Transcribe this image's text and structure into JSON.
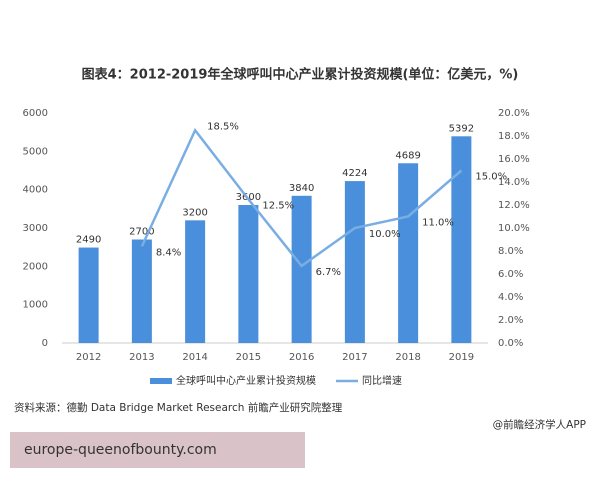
{
  "chart_data": {
    "type": "bar",
    "title": "图表4：2012-2019年全球呼叫中心产业累计投资规模(单位：亿美元，%)",
    "categories": [
      "2012",
      "2013",
      "2014",
      "2015",
      "2016",
      "2017",
      "2018",
      "2019"
    ],
    "series": [
      {
        "name": "全球呼叫中心产业累计投资规模",
        "type": "bar",
        "color": "#4a8fdc",
        "values": [
          2490,
          2700,
          3200,
          3600,
          3840,
          4224,
          4689,
          5392
        ]
      },
      {
        "name": "同比增速",
        "type": "line",
        "axis": "y2",
        "color": "#7aaee3",
        "values": [
          null,
          8.4,
          18.5,
          12.5,
          6.7,
          10.0,
          11.0,
          15.0
        ],
        "value_labels": [
          null,
          "8.4%",
          "18.5%",
          "12.5%",
          "6.7%",
          "10.0%",
          "11.0%",
          "15.0%"
        ]
      }
    ],
    "ylim": [
      0,
      6000
    ],
    "yticks": [
      0,
      1000,
      2000,
      3000,
      4000,
      5000,
      6000
    ],
    "y2lim": [
      0,
      20
    ],
    "y2ticks": [
      {
        "value": 0,
        "label": "0.0%"
      },
      {
        "value": 2,
        "label": "2.0%"
      },
      {
        "value": 4,
        "label": "4.0%"
      },
      {
        "value": 6,
        "label": "6.0%"
      },
      {
        "value": 8,
        "label": "8.0%"
      },
      {
        "value": 10,
        "label": "10.0%"
      },
      {
        "value": 12,
        "label": "12.0%"
      },
      {
        "value": 14,
        "label": "14.0%"
      },
      {
        "value": 16,
        "label": "16.0%"
      },
      {
        "value": 18,
        "label": "18.0%"
      },
      {
        "value": 20,
        "label": "20.0%"
      }
    ],
    "grid": false,
    "source": "资料来源：德勤 Data Bridge Market Research 前瞻产业研究院整理",
    "credit": "@前瞻经济学人APP",
    "caption": "europe-queenofbounty.com"
  }
}
